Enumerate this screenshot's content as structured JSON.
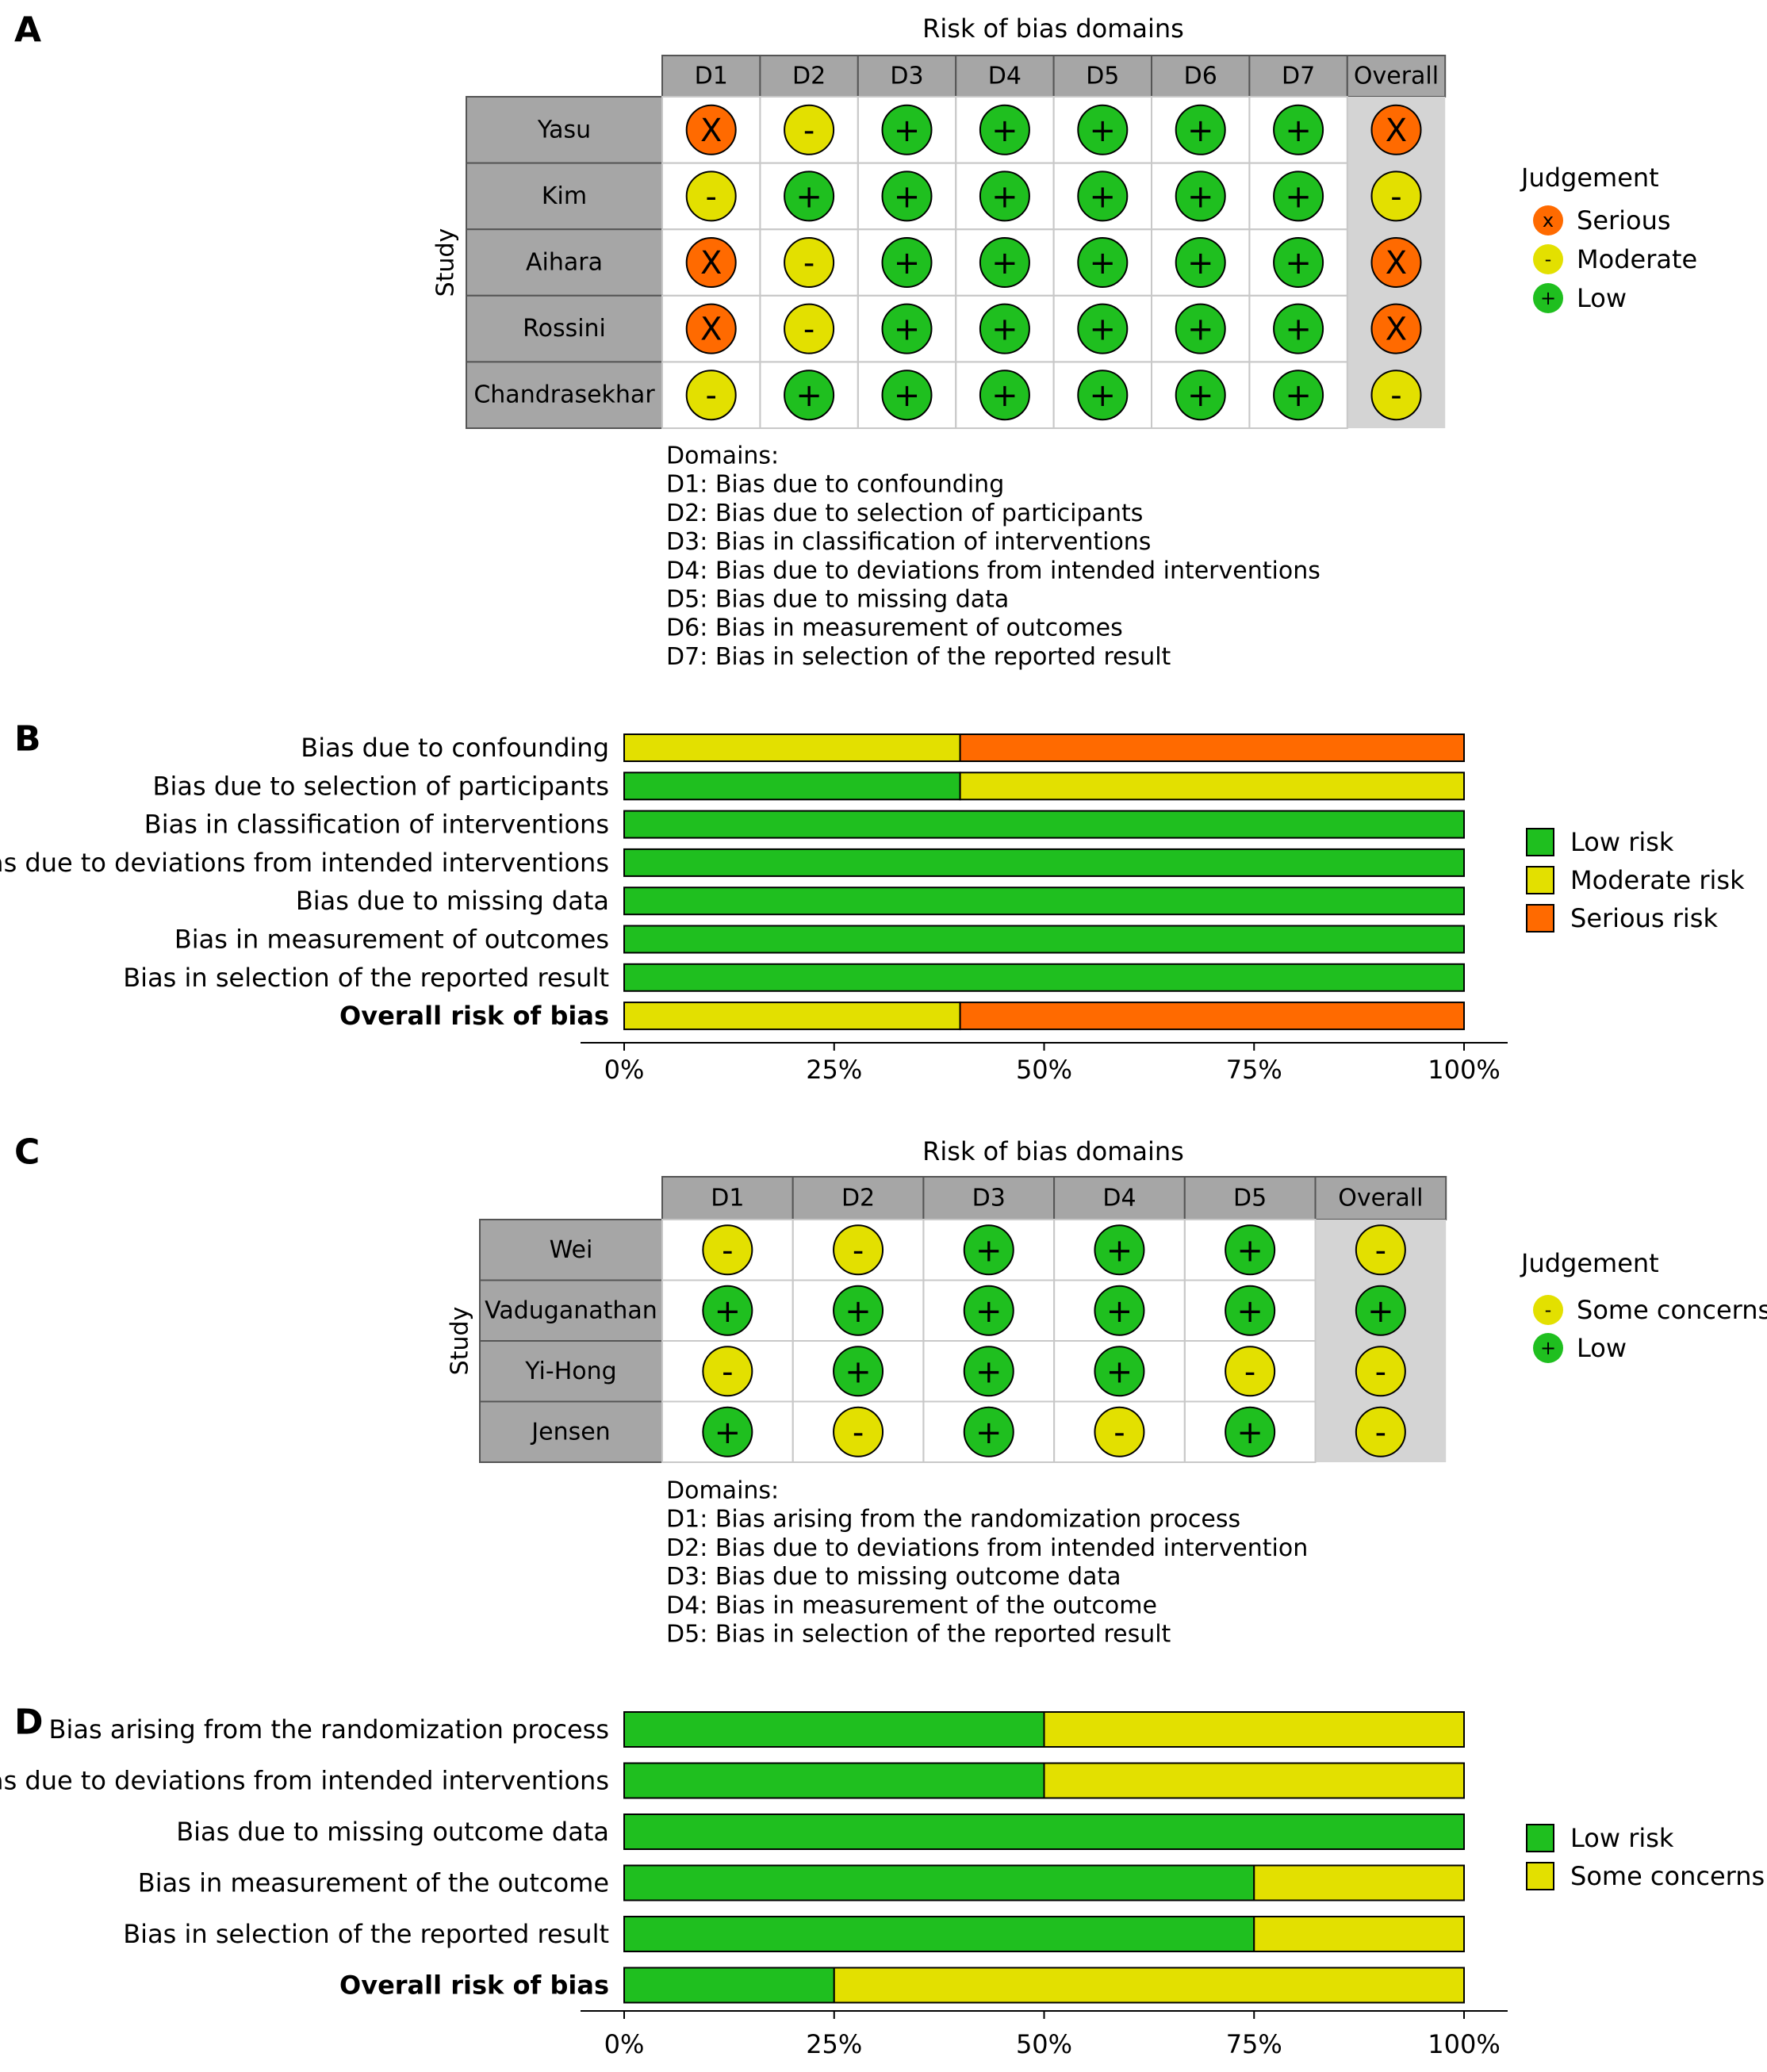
{
  "colors": {
    "low": "#1fbf1f",
    "moderate": "#e3e000",
    "serious": "#ff6a00",
    "header_bg": "#a6a6a6",
    "overall_bg": "#d4d4d4",
    "border": "#c8c8c8"
  },
  "panels": [
    {
      "letter": "A",
      "type": "traffic_light",
      "title": "Risk of bias domains",
      "study_axis_label": "Study",
      "domains": [
        "D1",
        "D2",
        "D3",
        "D4",
        "D5",
        "D6",
        "D7"
      ],
      "overall_label": "Overall",
      "studies": [
        {
          "name": "Yasu",
          "judgements": [
            "X",
            "-",
            "+",
            "+",
            "+",
            "+",
            "+"
          ],
          "overall": "X"
        },
        {
          "name": "Kim",
          "judgements": [
            "-",
            "+",
            "+",
            "+",
            "+",
            "+",
            "+"
          ],
          "overall": "-"
        },
        {
          "name": "Aihara",
          "judgements": [
            "X",
            "-",
            "+",
            "+",
            "+",
            "+",
            "+"
          ],
          "overall": "X"
        },
        {
          "name": "Rossini",
          "judgements": [
            "X",
            "-",
            "+",
            "+",
            "+",
            "+",
            "+"
          ],
          "overall": "X"
        },
        {
          "name": "Chandrasekhar",
          "judgements": [
            "-",
            "+",
            "+",
            "+",
            "+",
            "+",
            "+"
          ],
          "overall": "-"
        }
      ],
      "legend_title": "Judgement",
      "legend": [
        {
          "symbol": "x",
          "label": "Serious",
          "color": "serious"
        },
        {
          "symbol": "-",
          "label": "Moderate",
          "color": "moderate"
        },
        {
          "symbol": "+",
          "label": "Low",
          "color": "low"
        }
      ],
      "domains_title": "Domains:",
      "domain_descriptions": [
        "D1: Bias due to confounding",
        "D2: Bias due to selection of participants",
        "D3: Bias in classification of interventions",
        "D4: Bias due to deviations from intended interventions",
        "D5: Bias due to missing data",
        "D6: Bias in measurement of outcomes",
        "D7: Bias in selection of the reported result"
      ]
    },
    {
      "letter": "B",
      "type": "stacked_bar",
      "x_ticks": [
        "0%",
        "25%",
        "50%",
        "75%",
        "100%"
      ],
      "legend": [
        {
          "label": "Low risk",
          "color": "low"
        },
        {
          "label": "Moderate risk",
          "color": "moderate"
        },
        {
          "label": "Serious risk",
          "color": "serious"
        }
      ]
    },
    {
      "letter": "C",
      "type": "traffic_light",
      "title": "Risk of bias domains",
      "study_axis_label": "Study",
      "domains": [
        "D1",
        "D2",
        "D3",
        "D4",
        "D5"
      ],
      "overall_label": "Overall",
      "studies": [
        {
          "name": "Wei",
          "judgements": [
            "-",
            "-",
            "+",
            "+",
            "+"
          ],
          "overall": "-"
        },
        {
          "name": "Vaduganathan",
          "judgements": [
            "+",
            "+",
            "+",
            "+",
            "+"
          ],
          "overall": "+"
        },
        {
          "name": "Yi-Hong",
          "judgements": [
            "-",
            "+",
            "+",
            "+",
            "-"
          ],
          "overall": "-"
        },
        {
          "name": "Jensen",
          "judgements": [
            "+",
            "-",
            "+",
            "-",
            "+"
          ],
          "overall": "-"
        }
      ],
      "legend_title": "Judgement",
      "legend": [
        {
          "symbol": "-",
          "label": "Some concerns",
          "color": "moderate"
        },
        {
          "symbol": "+",
          "label": "Low",
          "color": "low"
        }
      ],
      "domains_title": "Domains:",
      "domain_descriptions": [
        "D1: Bias arising from the randomization process",
        "D2: Bias due to deviations from intended intervention",
        "D3: Bias due to missing outcome data",
        "D4: Bias in measurement of the outcome",
        "D5: Bias in selection of the reported result"
      ]
    },
    {
      "letter": "D",
      "type": "stacked_bar",
      "x_ticks": [
        "0%",
        "25%",
        "50%",
        "75%",
        "100%"
      ],
      "legend": [
        {
          "label": "Low risk",
          "color": "low"
        },
        {
          "label": "Some concerns",
          "color": "moderate"
        }
      ]
    }
  ],
  "chart_data": [
    {
      "type": "bar",
      "panel": "B",
      "orientation": "horizontal",
      "stacked": true,
      "unit": "percent",
      "xlim": [
        0,
        100
      ],
      "categories": [
        "Bias due to confounding",
        "Bias due to selection of participants",
        "Bias in classification of interventions",
        "Bias due to deviations from intended interventions",
        "Bias due to missing data",
        "Bias in measurement of outcomes",
        "Bias in selection of the reported result",
        "Overall risk of bias"
      ],
      "bold_categories": [
        "Overall risk of bias"
      ],
      "series": [
        {
          "name": "Low risk",
          "color": "low",
          "values": [
            0,
            40,
            100,
            100,
            100,
            100,
            100,
            0
          ]
        },
        {
          "name": "Moderate risk",
          "color": "moderate",
          "values": [
            40,
            60,
            0,
            0,
            0,
            0,
            0,
            40
          ]
        },
        {
          "name": "Serious risk",
          "color": "serious",
          "values": [
            60,
            0,
            0,
            0,
            0,
            0,
            0,
            60
          ]
        }
      ],
      "legend_position": "right"
    },
    {
      "type": "bar",
      "panel": "D",
      "orientation": "horizontal",
      "stacked": true,
      "unit": "percent",
      "xlim": [
        0,
        100
      ],
      "categories": [
        "Bias arising from the randomization process",
        "Bias due to deviations from intended interventions",
        "Bias due to missing outcome data",
        "Bias in measurement of the outcome",
        "Bias in selection of the reported result",
        "Overall risk of bias"
      ],
      "bold_categories": [
        "Overall risk of bias"
      ],
      "series": [
        {
          "name": "Low risk",
          "color": "low",
          "values": [
            50,
            50,
            100,
            75,
            75,
            25
          ]
        },
        {
          "name": "Some concerns",
          "color": "moderate",
          "values": [
            50,
            50,
            0,
            25,
            25,
            75
          ]
        }
      ],
      "legend_position": "right"
    }
  ]
}
